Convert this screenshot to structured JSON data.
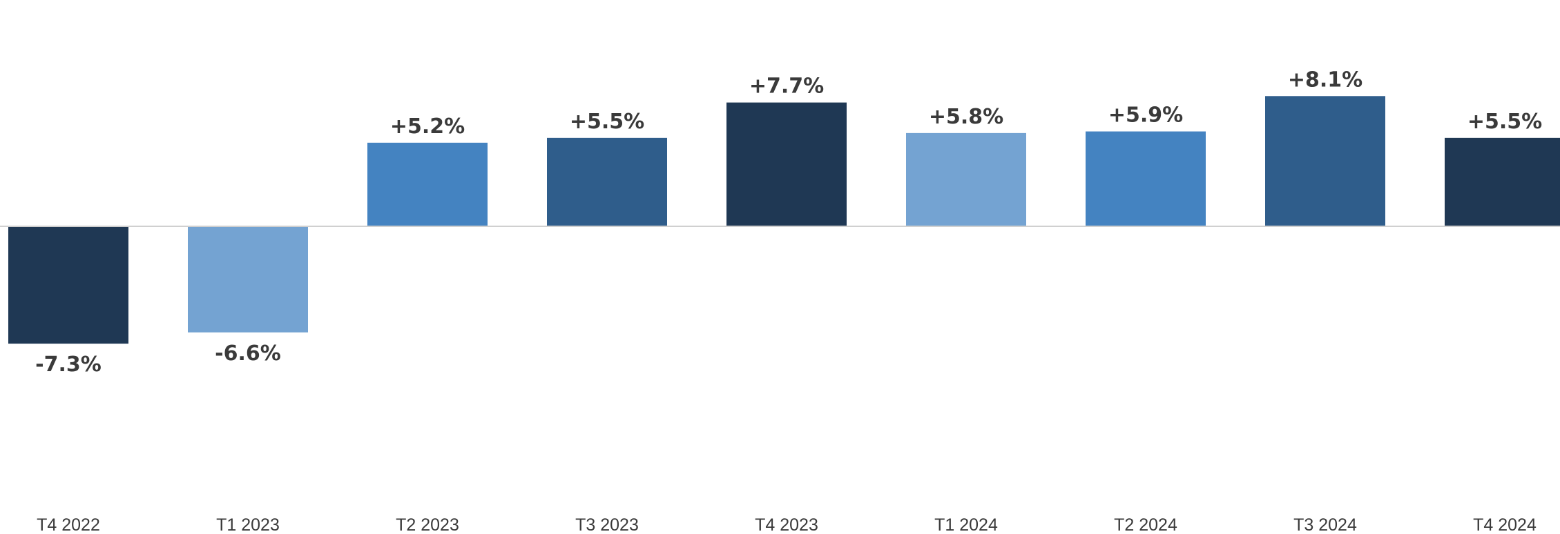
{
  "chart_data": {
    "type": "bar",
    "categories": [
      "T4 2022",
      "T1 2023",
      "T2 2023",
      "T3 2023",
      "T4 2023",
      "T1 2024",
      "T2 2024",
      "T3 2024",
      "T4 2024"
    ],
    "values": [
      -7.3,
      -6.6,
      5.2,
      5.5,
      7.7,
      5.8,
      5.9,
      8.1,
      5.5
    ],
    "value_labels": [
      "-7.3%",
      "-6.6%",
      "+5.2%",
      "+5.5%",
      "+7.7%",
      "+5.8%",
      "+5.9%",
      "+8.1%",
      "+5.5%"
    ],
    "bar_colors": [
      "#1f3854",
      "#74a3d2",
      "#4483c1",
      "#2f5d8b",
      "#1f3854",
      "#74a3d2",
      "#4483c1",
      "#2f5d8b",
      "#1f3854"
    ],
    "baseline_color": "#d0d0d0",
    "label_color": "#3a3a3a",
    "grid": false,
    "legend": "none"
  }
}
